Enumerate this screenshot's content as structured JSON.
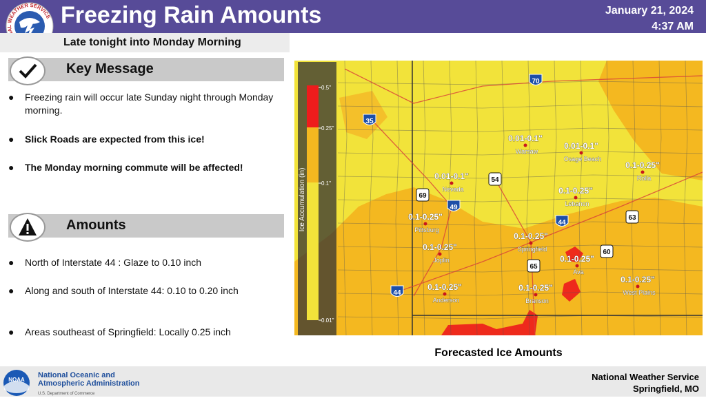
{
  "header": {
    "logo_text": "NATIONAL WEATHER SERVICE",
    "title": "Freezing Rain Amounts",
    "date": "January 21, 2024",
    "time": "4:37 AM",
    "subtitle": "Late tonight into Monday Morning"
  },
  "key_message": {
    "heading": "Key Message",
    "bullets": [
      "Freezing rain will occur late Sunday night through Monday morning.",
      "Slick Roads are expected from this ice!",
      "The Monday morning commute will be affected!"
    ]
  },
  "amounts": {
    "heading": "Amounts",
    "bullets": [
      "North of Interstate 44 : Glaze to 0.10 inch",
      "Along and south of Interstate 44: 0.10 to 0.20 inch",
      "Areas southeast of Springfield: Locally 0.25 inch"
    ]
  },
  "map": {
    "legend": {
      "title": "Ice Accumulation (in)",
      "ticks": [
        "0.5\"",
        "0.25\"",
        "0.1\"",
        "0.01\""
      ]
    },
    "cities": [
      {
        "name": "Warsaw",
        "amount": "0.01-0.1\""
      },
      {
        "name": "Osage Beach",
        "amount": "0.01-0.1\""
      },
      {
        "name": "Rolla",
        "amount": "0.1-0.25\""
      },
      {
        "name": "Nevada",
        "amount": "0.01-0.1\""
      },
      {
        "name": "Lebanon",
        "amount": "0.1-0.25\""
      },
      {
        "name": "Pittsburg",
        "amount": "0.1-0.25\""
      },
      {
        "name": "Springfield",
        "amount": "0.1-0.25\""
      },
      {
        "name": "Joplin",
        "amount": "0.1-0.25\""
      },
      {
        "name": "Ava",
        "amount": "0.1-0.25\""
      },
      {
        "name": "West Plains",
        "amount": "0.1-0.25\""
      },
      {
        "name": "Anderson",
        "amount": "0.1-0.25\""
      },
      {
        "name": "Branson",
        "amount": "0.1-0.25\""
      }
    ],
    "highways": [
      "70",
      "35",
      "54",
      "69",
      "49",
      "44",
      "63",
      "60",
      "65",
      "44"
    ],
    "caption": "Forecasted Ice Amounts"
  },
  "footer": {
    "agency": [
      "National Oceanic and",
      "Atmospheric Administration"
    ],
    "department": "U.S. Department of Commerce",
    "noaa_logo": "NOAA",
    "office": [
      "National Weather Service",
      "Springfield, MO"
    ]
  }
}
